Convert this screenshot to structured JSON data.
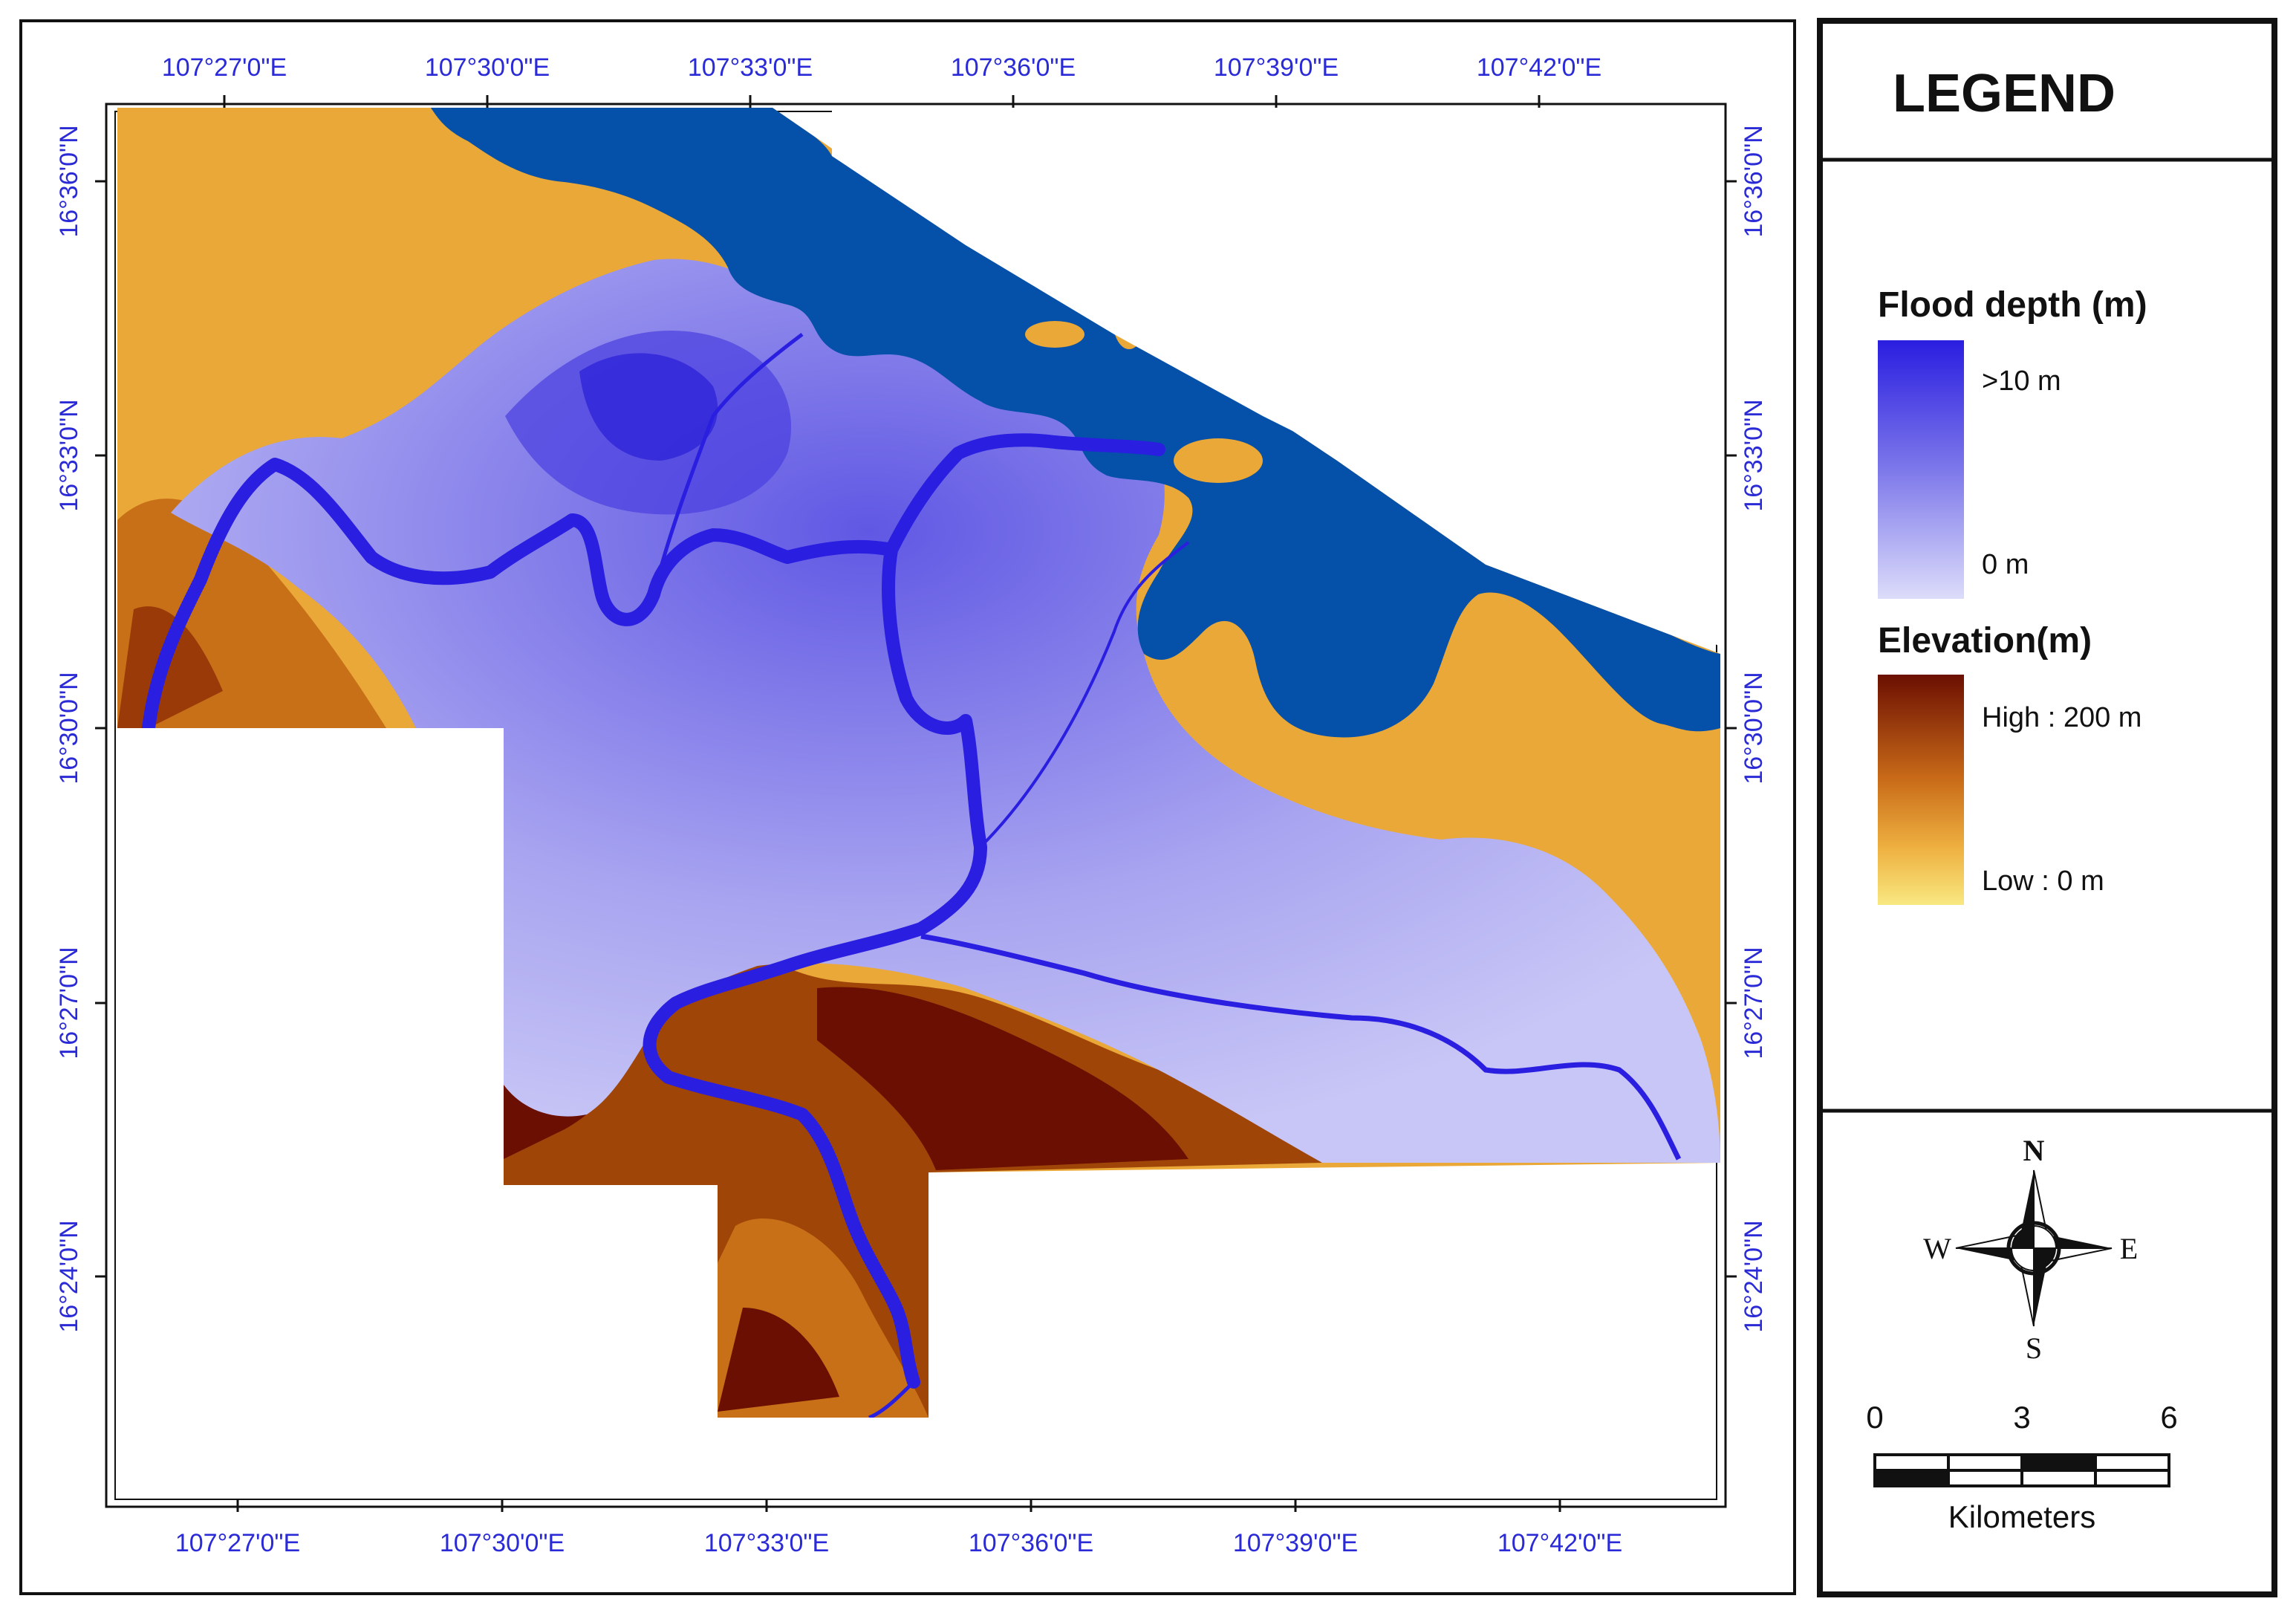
{
  "map": {
    "top_lon_labels": [
      "107°27'0\"E",
      "107°30'0\"E",
      "107°33'0\"E",
      "107°36'0\"E",
      "107°39'0\"E",
      "107°42'0\"E"
    ],
    "bottom_lon_labels": [
      "107°27'0\"E",
      "107°30'0\"E",
      "107°33'0\"E",
      "107°36'0\"E",
      "107°39'0\"E",
      "107°42'0\"E"
    ],
    "left_lat_labels": [
      "16°36'0\"N",
      "16°33'0\"N",
      "16°30'0\"N",
      "16°27'0\"N",
      "16°24'0\"N"
    ],
    "right_lat_labels": [
      "16°36'0\"N",
      "16°33'0\"N",
      "16°30'0\"N",
      "16°27'0\"N",
      "16°24'0\"N"
    ],
    "colors": {
      "sea": "#0550a8",
      "river": "#2a1ee0",
      "flood_deep": "#2a1ee0",
      "flood_shallow": "#d4d2f8",
      "elev_high": "#6b0f02",
      "elev_low": "#f8e47a",
      "elev_mid": "#e8a838",
      "coord_text": "#2a2ad6"
    }
  },
  "legend": {
    "title": "LEGEND",
    "flood": {
      "heading": "Flood depth (m)",
      "high_label": ">10 m",
      "low_label": "0 m"
    },
    "elevation": {
      "heading": "Elevation(m)",
      "high_label": "High : 200 m",
      "low_label": "Low : 0 m"
    },
    "north_arrow": {
      "n": "N",
      "s": "S",
      "e": "E",
      "w": "W",
      "icon": "compass-rose-icon"
    },
    "scale_bar": {
      "ticks": [
        "0",
        "3",
        "6"
      ],
      "unit": "Kilometers"
    }
  }
}
